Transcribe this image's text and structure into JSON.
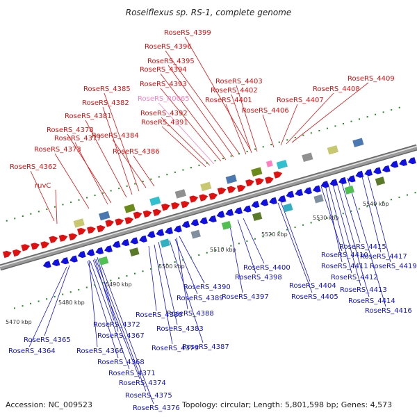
{
  "title": "Roseiflexus sp. RS-1, complete genome",
  "footer": {
    "accession": "Accession: NC_009523",
    "topology": "Topology: circular; Length: 5,801,598 bp; Genes: 4,573"
  },
  "colors": {
    "forward": "#e01010",
    "reverse": "#1010e0",
    "highlight": "#ff80c0",
    "backbone": "#9a9a9a",
    "tick": "#1a8a1a"
  },
  "ticks": [
    "5470 kbp",
    "5480 kbp",
    "5490 kbp",
    "5500 kbp",
    "5510 kbp",
    "5520 kbp",
    "5530 kbp",
    "5540 kbp"
  ],
  "top_labels": [
    "RoseRS_4399",
    "RoseRS_4396",
    "RoseRS_4395",
    "RoseRS_4394",
    "RoseRS_4393",
    "RoseRS_R0065",
    "RoseRS_4392",
    "RoseRS_4391",
    "RoseRS_4385",
    "RoseRS_4382",
    "RoseRS_4381",
    "RoseRS_4378",
    "RoseRS_4377",
    "RoseRS_4384",
    "RoseRS_4373",
    "RoseRS_4386",
    "RoseRS_4362",
    "ruvC",
    "RoseRS_4403",
    "RoseRS_4402",
    "RoseRS_4401",
    "RoseRS_4406",
    "RoseRS_4409",
    "RoseRS_4408",
    "RoseRS_4407"
  ],
  "bottom_labels": [
    "RoseRS_4365",
    "RoseRS_4364",
    "RoseRS_4366",
    "RoseRS_4367",
    "RoseRS_4372",
    "RoseRS_4368",
    "RoseRS_4371",
    "RoseRS_4374",
    "RoseRS_4375",
    "RoseRS_4376",
    "RoseRS_4380",
    "RoseRS_4383",
    "RoseRS_4379",
    "RoseRS_4388",
    "RoseRS_4389",
    "RoseRS_4390",
    "RoseRS_4387",
    "RoseRS_4400",
    "RoseRS_4398",
    "RoseRS_4397",
    "RoseRS_4404",
    "RoseRS_4405",
    "RoseRS_4410",
    "RoseRS_4411",
    "RoseRS_4412",
    "RoseRS_4413",
    "RoseRS_4414",
    "RoseRS_4415",
    "RoseRS_4417",
    "RoseRS_4419",
    "RoseRS_4416"
  ]
}
